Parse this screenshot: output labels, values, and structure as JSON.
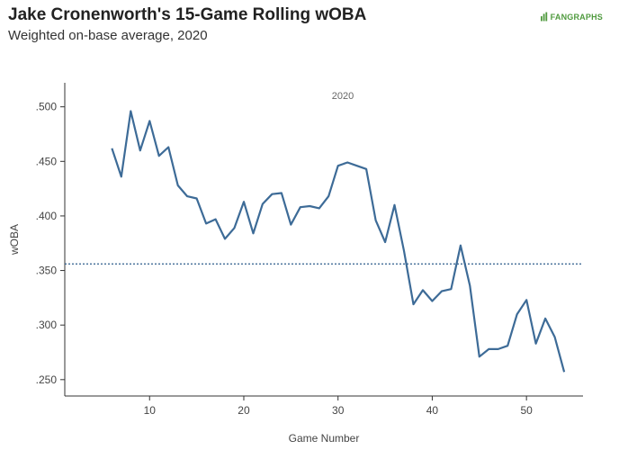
{
  "header": {
    "title": "Jake Cronenworth's 15-Game Rolling wOBA",
    "subtitle": "Weighted on-base average, 2020",
    "logo_text_a": "FAN",
    "logo_text_b": "GRAPHS"
  },
  "colors": {
    "line": "#3d6b97",
    "reference": "#2f5d8c",
    "axis": "#333333"
  },
  "chart_data": {
    "type": "line",
    "xlabel": "Game Number",
    "ylabel": "wOBA",
    "annotation": "2020",
    "xlim": [
      1,
      56
    ],
    "ylim": [
      0.235,
      0.522
    ],
    "x_ticks": [
      10,
      20,
      30,
      40,
      50
    ],
    "x_tick_labels": [
      "10",
      "20",
      "30",
      "40",
      "50"
    ],
    "y_ticks": [
      0.25,
      0.3,
      0.35,
      0.4,
      0.45,
      0.5
    ],
    "y_tick_labels": [
      ".250",
      ".300",
      ".350",
      ".400",
      ".450",
      ".500"
    ],
    "reference_line": 0.356,
    "series": [
      {
        "x": [
          6,
          7,
          8,
          9,
          10,
          11,
          12,
          13,
          14,
          15,
          16,
          17,
          18,
          19,
          20,
          21,
          22,
          23,
          24,
          25,
          26,
          27,
          28,
          29,
          30,
          31,
          32,
          33,
          34,
          35,
          36,
          37,
          38,
          39,
          40,
          41,
          42,
          43,
          44,
          45,
          46,
          47,
          48,
          49,
          50,
          51,
          52,
          53,
          54
        ],
        "values": [
          0.462,
          0.436,
          0.496,
          0.46,
          0.487,
          0.455,
          0.463,
          0.428,
          0.418,
          0.416,
          0.393,
          0.397,
          0.379,
          0.389,
          0.413,
          0.384,
          0.411,
          0.42,
          0.421,
          0.392,
          0.408,
          0.409,
          0.407,
          0.418,
          0.446,
          0.449,
          0.446,
          0.443,
          0.396,
          0.376,
          0.41,
          0.368,
          0.319,
          0.332,
          0.322,
          0.331,
          0.333,
          0.373,
          0.336,
          0.271,
          0.278,
          0.278,
          0.281,
          0.31,
          0.323,
          0.283,
          0.306,
          0.289,
          0.257
        ]
      }
    ]
  }
}
